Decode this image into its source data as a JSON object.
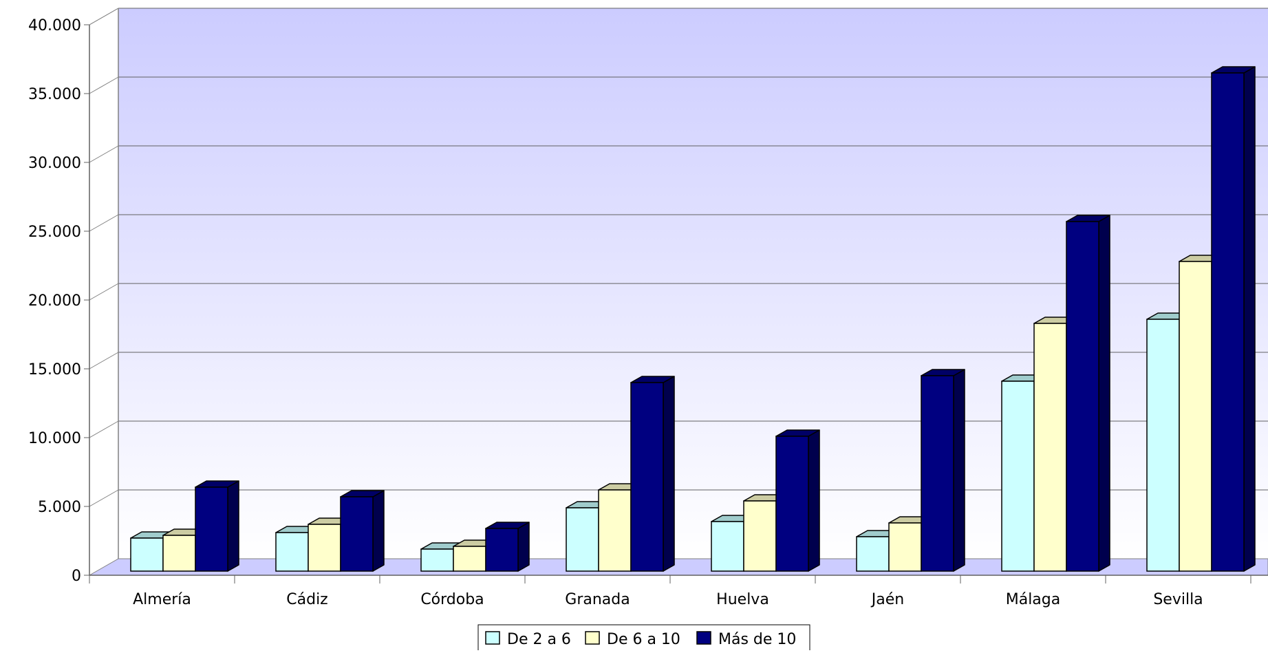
{
  "chart_data": {
    "type": "bar",
    "title": "",
    "xlabel": "",
    "ylabel": "",
    "ylim": [
      0,
      40000
    ],
    "yticks": [
      0,
      5000,
      10000,
      15000,
      20000,
      25000,
      30000,
      35000,
      40000
    ],
    "ytick_labels": [
      "0",
      "5.000",
      "10.000",
      "15.000",
      "20.000",
      "25.000",
      "30.000",
      "35.000",
      "40.000"
    ],
    "categories": [
      "Almería",
      "Cádiz",
      "Córdoba",
      "Granada",
      "Huelva",
      "Jaén",
      "Málaga",
      "Sevilla"
    ],
    "series": [
      {
        "name": "De 2 a 6",
        "color": "#ccffff",
        "top_color": "#a0cccc",
        "side_color": "#7fa3a3",
        "values": [
          2400,
          2800,
          1600,
          4600,
          3600,
          2500,
          13800,
          18300
        ]
      },
      {
        "name": "De 6 a 10",
        "color": "#ffffcc",
        "top_color": "#cccca3",
        "side_color": "#a3a37f",
        "values": [
          2600,
          3400,
          1800,
          5900,
          5100,
          3500,
          18000,
          22500
        ]
      },
      {
        "name": "Más de 10",
        "color": "#000080",
        "top_color": "#000066",
        "side_color": "#00004d",
        "values": [
          6100,
          5400,
          3100,
          13700,
          9800,
          14200,
          25400,
          36200
        ]
      }
    ],
    "grid": true,
    "legend_position": "bottom-center",
    "style": "3d",
    "background_gradient": [
      "#ccccff",
      "#ffffff"
    ],
    "floor_color": "#ccccff"
  }
}
